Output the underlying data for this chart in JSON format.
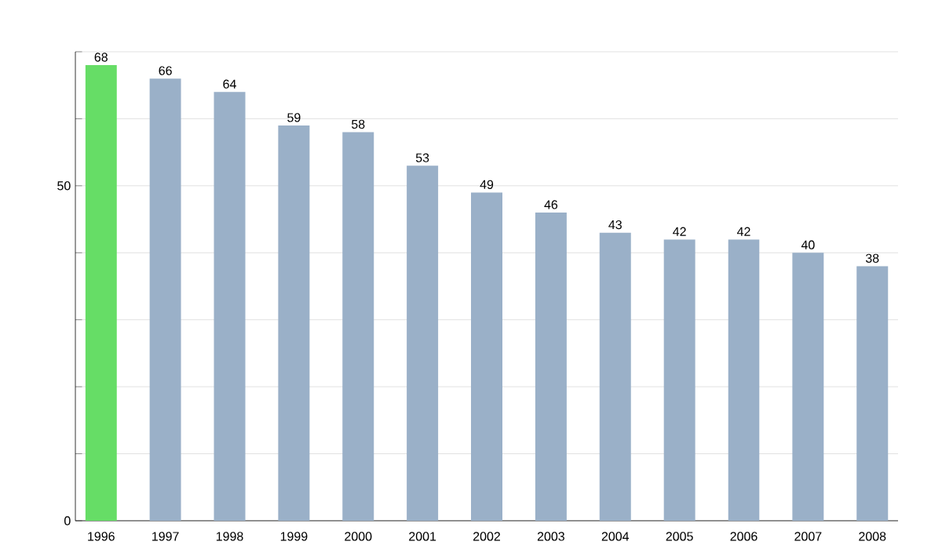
{
  "chart_data": {
    "type": "bar",
    "categories": [
      "1996",
      "1997",
      "1998",
      "1999",
      "2000",
      "2001",
      "2002",
      "2003",
      "2004",
      "2005",
      "2006",
      "2007",
      "2008"
    ],
    "values": [
      68,
      66,
      64,
      59,
      58,
      53,
      49,
      46,
      43,
      42,
      42,
      40,
      38
    ],
    "colors": [
      "#66dd66",
      "#9ab0c8",
      "#9ab0c8",
      "#9ab0c8",
      "#9ab0c8",
      "#9ab0c8",
      "#9ab0c8",
      "#9ab0c8",
      "#9ab0c8",
      "#9ab0c8",
      "#9ab0c8",
      "#9ab0c8",
      "#9ab0c8"
    ],
    "ylim": [
      0,
      70
    ],
    "yticks": [
      0,
      {
        "value": 10,
        "label": null
      },
      {
        "value": 20,
        "label": null
      },
      {
        "value": 30,
        "label": null
      },
      {
        "value": 40,
        "label": null
      },
      50,
      {
        "value": 60,
        "label": null
      },
      {
        "value": 70,
        "label": null
      }
    ],
    "grid": "y",
    "data_labels": true
  }
}
